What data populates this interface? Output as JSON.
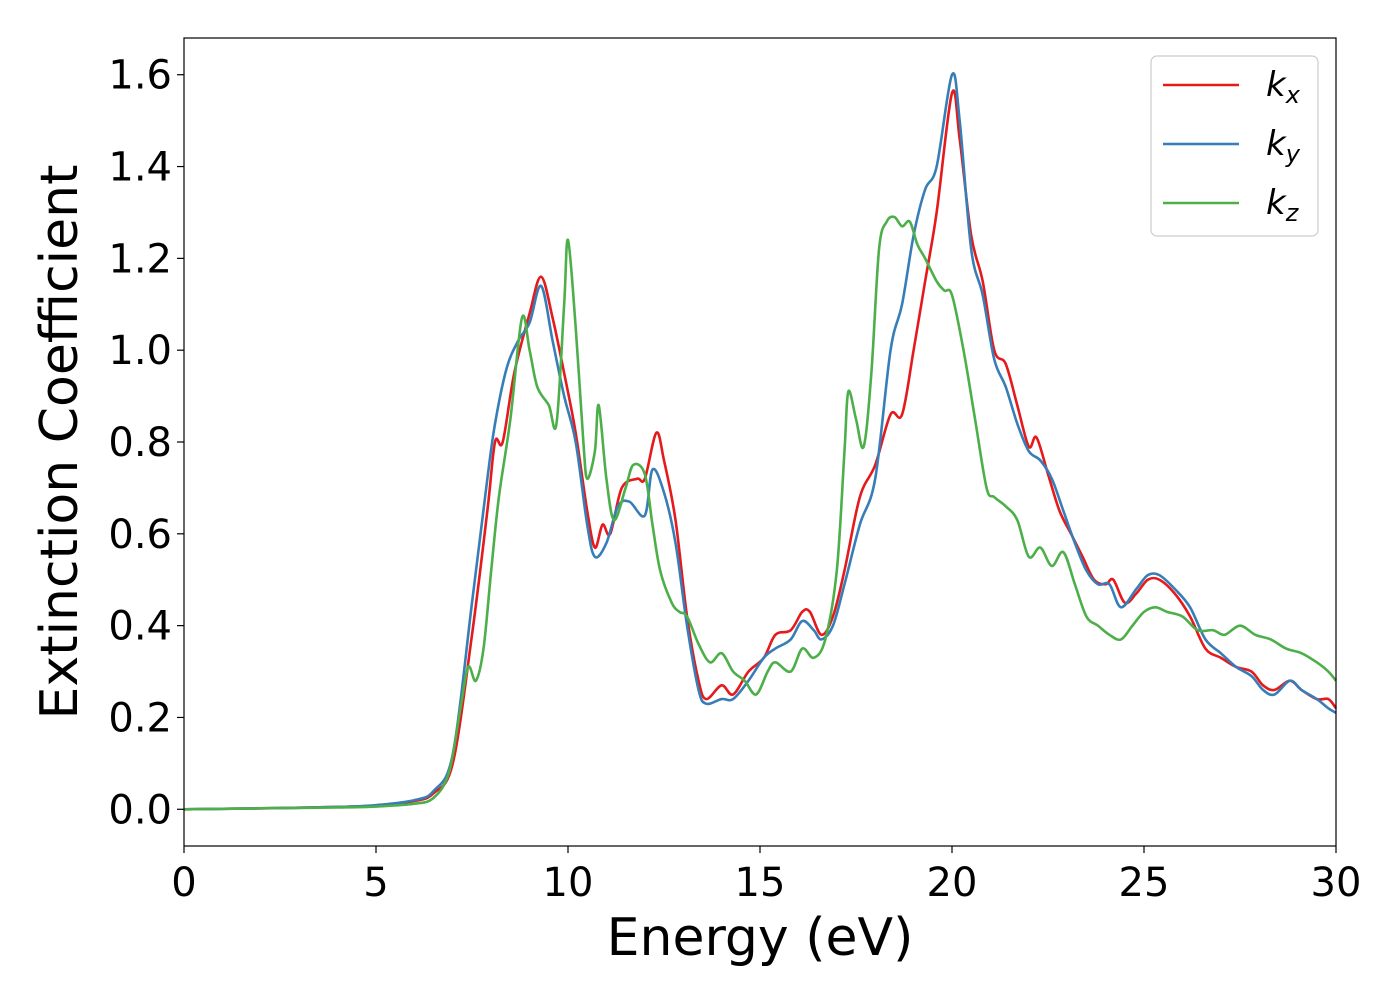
{
  "chart_data": {
    "type": "line",
    "xlabel": "Energy (eV)",
    "ylabel": "Extinction Coefficient",
    "xlim": [
      0,
      30
    ],
    "ylim": [
      -0.08,
      1.68
    ],
    "xticks": [
      "0",
      "5",
      "10",
      "15",
      "20",
      "25",
      "30"
    ],
    "xtick_values": [
      0,
      5,
      10,
      15,
      20,
      25,
      30
    ],
    "yticks": [
      "0.0",
      "0.2",
      "0.4",
      "0.6",
      "0.8",
      "1.0",
      "1.2",
      "1.4",
      "1.6"
    ],
    "ytick_values": [
      0,
      0.2,
      0.4,
      0.6,
      0.8,
      1.0,
      1.2,
      1.4,
      1.6
    ],
    "grid": false,
    "legend_position": "top-right",
    "series": [
      {
        "name": "k_x",
        "label_base": "k",
        "label_sub": "x",
        "color": "#e41a1c",
        "points": [
          [
            0,
            0
          ],
          [
            2,
            0.002
          ],
          [
            4,
            0.005
          ],
          [
            5,
            0.008
          ],
          [
            6,
            0.018
          ],
          [
            6.5,
            0.035
          ],
          [
            7,
            0.1
          ],
          [
            7.5,
            0.38
          ],
          [
            7.9,
            0.65
          ],
          [
            8.1,
            0.8
          ],
          [
            8.3,
            0.8
          ],
          [
            8.6,
            0.95
          ],
          [
            9,
            1.08
          ],
          [
            9.3,
            1.16
          ],
          [
            9.6,
            1.07
          ],
          [
            9.9,
            0.95
          ],
          [
            10.2,
            0.82
          ],
          [
            10.5,
            0.65
          ],
          [
            10.7,
            0.57
          ],
          [
            10.9,
            0.62
          ],
          [
            11.1,
            0.6
          ],
          [
            11.4,
            0.7
          ],
          [
            11.8,
            0.72
          ],
          [
            12,
            0.72
          ],
          [
            12.3,
            0.82
          ],
          [
            12.5,
            0.76
          ],
          [
            12.8,
            0.63
          ],
          [
            13.1,
            0.42
          ],
          [
            13.4,
            0.28
          ],
          [
            13.6,
            0.24
          ],
          [
            14,
            0.27
          ],
          [
            14.3,
            0.25
          ],
          [
            14.7,
            0.3
          ],
          [
            15.1,
            0.33
          ],
          [
            15.4,
            0.38
          ],
          [
            15.8,
            0.39
          ],
          [
            16.1,
            0.43
          ],
          [
            16.3,
            0.43
          ],
          [
            16.6,
            0.38
          ],
          [
            16.9,
            0.42
          ],
          [
            17.2,
            0.52
          ],
          [
            17.6,
            0.68
          ],
          [
            18,
            0.75
          ],
          [
            18.4,
            0.86
          ],
          [
            18.7,
            0.86
          ],
          [
            19,
            1.0
          ],
          [
            19.3,
            1.15
          ],
          [
            19.6,
            1.3
          ],
          [
            20,
            1.56
          ],
          [
            20.2,
            1.46
          ],
          [
            20.5,
            1.25
          ],
          [
            20.8,
            1.15
          ],
          [
            21.1,
            1.0
          ],
          [
            21.4,
            0.97
          ],
          [
            21.7,
            0.88
          ],
          [
            22,
            0.79
          ],
          [
            22.2,
            0.81
          ],
          [
            22.5,
            0.73
          ],
          [
            22.8,
            0.65
          ],
          [
            23.1,
            0.6
          ],
          [
            23.4,
            0.55
          ],
          [
            23.7,
            0.5
          ],
          [
            24,
            0.49
          ],
          [
            24.2,
            0.5
          ],
          [
            24.5,
            0.45
          ],
          [
            24.8,
            0.47
          ],
          [
            25.1,
            0.5
          ],
          [
            25.4,
            0.5
          ],
          [
            25.8,
            0.47
          ],
          [
            26.2,
            0.42
          ],
          [
            26.6,
            0.35
          ],
          [
            27,
            0.33
          ],
          [
            27.4,
            0.31
          ],
          [
            27.8,
            0.3
          ],
          [
            28.1,
            0.27
          ],
          [
            28.4,
            0.26
          ],
          [
            28.8,
            0.28
          ],
          [
            29.1,
            0.26
          ],
          [
            29.5,
            0.24
          ],
          [
            29.8,
            0.24
          ],
          [
            30,
            0.22
          ]
        ]
      },
      {
        "name": "k_y",
        "label_base": "k",
        "label_sub": "y",
        "color": "#377eb8",
        "points": [
          [
            0,
            0
          ],
          [
            2,
            0.002
          ],
          [
            4,
            0.005
          ],
          [
            5,
            0.009
          ],
          [
            6,
            0.02
          ],
          [
            6.5,
            0.04
          ],
          [
            7,
            0.12
          ],
          [
            7.5,
            0.45
          ],
          [
            7.9,
            0.72
          ],
          [
            8.1,
            0.84
          ],
          [
            8.4,
            0.96
          ],
          [
            8.7,
            1.02
          ],
          [
            9,
            1.06
          ],
          [
            9.3,
            1.14
          ],
          [
            9.6,
            1.02
          ],
          [
            9.9,
            0.9
          ],
          [
            10.2,
            0.8
          ],
          [
            10.5,
            0.62
          ],
          [
            10.7,
            0.55
          ],
          [
            11,
            0.58
          ],
          [
            11.3,
            0.66
          ],
          [
            11.6,
            0.67
          ],
          [
            12,
            0.64
          ],
          [
            12.2,
            0.74
          ],
          [
            12.5,
            0.69
          ],
          [
            12.8,
            0.58
          ],
          [
            13.1,
            0.4
          ],
          [
            13.4,
            0.26
          ],
          [
            13.6,
            0.23
          ],
          [
            14,
            0.24
          ],
          [
            14.3,
            0.24
          ],
          [
            14.7,
            0.28
          ],
          [
            15.1,
            0.33
          ],
          [
            15.4,
            0.35
          ],
          [
            15.8,
            0.37
          ],
          [
            16.1,
            0.41
          ],
          [
            16.4,
            0.39
          ],
          [
            16.6,
            0.37
          ],
          [
            16.9,
            0.4
          ],
          [
            17.2,
            0.49
          ],
          [
            17.6,
            0.62
          ],
          [
            18,
            0.72
          ],
          [
            18.4,
            1.0
          ],
          [
            18.7,
            1.1
          ],
          [
            19,
            1.25
          ],
          [
            19.3,
            1.35
          ],
          [
            19.6,
            1.4
          ],
          [
            20,
            1.6
          ],
          [
            20.2,
            1.5
          ],
          [
            20.5,
            1.22
          ],
          [
            20.8,
            1.12
          ],
          [
            21.1,
            0.98
          ],
          [
            21.4,
            0.92
          ],
          [
            21.7,
            0.84
          ],
          [
            22,
            0.78
          ],
          [
            22.3,
            0.76
          ],
          [
            22.6,
            0.72
          ],
          [
            22.9,
            0.65
          ],
          [
            23.2,
            0.58
          ],
          [
            23.5,
            0.52
          ],
          [
            23.8,
            0.49
          ],
          [
            24.1,
            0.49
          ],
          [
            24.4,
            0.44
          ],
          [
            24.8,
            0.48
          ],
          [
            25.1,
            0.51
          ],
          [
            25.4,
            0.51
          ],
          [
            25.8,
            0.48
          ],
          [
            26.2,
            0.44
          ],
          [
            26.6,
            0.37
          ],
          [
            27,
            0.34
          ],
          [
            27.4,
            0.31
          ],
          [
            27.8,
            0.29
          ],
          [
            28.1,
            0.26
          ],
          [
            28.4,
            0.25
          ],
          [
            28.8,
            0.28
          ],
          [
            29.1,
            0.26
          ],
          [
            29.5,
            0.24
          ],
          [
            29.8,
            0.22
          ],
          [
            30,
            0.21
          ]
        ]
      },
      {
        "name": "k_z",
        "label_base": "k",
        "label_sub": "z",
        "color": "#4daf4a",
        "points": [
          [
            0,
            0
          ],
          [
            2,
            0.002
          ],
          [
            4,
            0.004
          ],
          [
            5,
            0.006
          ],
          [
            6,
            0.012
          ],
          [
            6.5,
            0.025
          ],
          [
            6.9,
            0.08
          ],
          [
            7.2,
            0.22
          ],
          [
            7.4,
            0.31
          ],
          [
            7.6,
            0.28
          ],
          [
            7.8,
            0.35
          ],
          [
            8,
            0.52
          ],
          [
            8.2,
            0.68
          ],
          [
            8.5,
            0.85
          ],
          [
            8.8,
            1.07
          ],
          [
            9,
            1.0
          ],
          [
            9.2,
            0.92
          ],
          [
            9.5,
            0.88
          ],
          [
            9.7,
            0.84
          ],
          [
            9.9,
            1.1
          ],
          [
            10,
            1.24
          ],
          [
            10.2,
            1.05
          ],
          [
            10.4,
            0.8
          ],
          [
            10.5,
            0.72
          ],
          [
            10.7,
            0.78
          ],
          [
            10.8,
            0.88
          ],
          [
            11,
            0.72
          ],
          [
            11.2,
            0.63
          ],
          [
            11.5,
            0.7
          ],
          [
            11.7,
            0.75
          ],
          [
            12,
            0.73
          ],
          [
            12.2,
            0.62
          ],
          [
            12.4,
            0.52
          ],
          [
            12.7,
            0.45
          ],
          [
            12.9,
            0.43
          ],
          [
            13.1,
            0.42
          ],
          [
            13.4,
            0.36
          ],
          [
            13.7,
            0.32
          ],
          [
            14,
            0.34
          ],
          [
            14.3,
            0.3
          ],
          [
            14.6,
            0.28
          ],
          [
            14.9,
            0.25
          ],
          [
            15.2,
            0.3
          ],
          [
            15.4,
            0.32
          ],
          [
            15.8,
            0.3
          ],
          [
            16.1,
            0.35
          ],
          [
            16.4,
            0.33
          ],
          [
            16.7,
            0.37
          ],
          [
            17,
            0.52
          ],
          [
            17.2,
            0.78
          ],
          [
            17.3,
            0.91
          ],
          [
            17.5,
            0.85
          ],
          [
            17.7,
            0.79
          ],
          [
            17.9,
            0.95
          ],
          [
            18.1,
            1.22
          ],
          [
            18.3,
            1.28
          ],
          [
            18.5,
            1.29
          ],
          [
            18.7,
            1.27
          ],
          [
            18.9,
            1.28
          ],
          [
            19.1,
            1.23
          ],
          [
            19.3,
            1.2
          ],
          [
            19.6,
            1.15
          ],
          [
            19.8,
            1.13
          ],
          [
            20,
            1.12
          ],
          [
            20.3,
            1.0
          ],
          [
            20.6,
            0.85
          ],
          [
            20.9,
            0.7
          ],
          [
            21.1,
            0.68
          ],
          [
            21.4,
            0.66
          ],
          [
            21.7,
            0.63
          ],
          [
            22,
            0.55
          ],
          [
            22.3,
            0.57
          ],
          [
            22.6,
            0.53
          ],
          [
            22.9,
            0.56
          ],
          [
            23.2,
            0.49
          ],
          [
            23.5,
            0.42
          ],
          [
            23.8,
            0.4
          ],
          [
            24.1,
            0.38
          ],
          [
            24.4,
            0.37
          ],
          [
            24.7,
            0.4
          ],
          [
            25,
            0.43
          ],
          [
            25.3,
            0.44
          ],
          [
            25.6,
            0.43
          ],
          [
            26,
            0.42
          ],
          [
            26.4,
            0.39
          ],
          [
            26.8,
            0.39
          ],
          [
            27.1,
            0.38
          ],
          [
            27.5,
            0.4
          ],
          [
            27.9,
            0.38
          ],
          [
            28.3,
            0.37
          ],
          [
            28.7,
            0.35
          ],
          [
            29.1,
            0.34
          ],
          [
            29.5,
            0.32
          ],
          [
            29.8,
            0.3
          ],
          [
            30,
            0.28
          ]
        ]
      }
    ]
  }
}
